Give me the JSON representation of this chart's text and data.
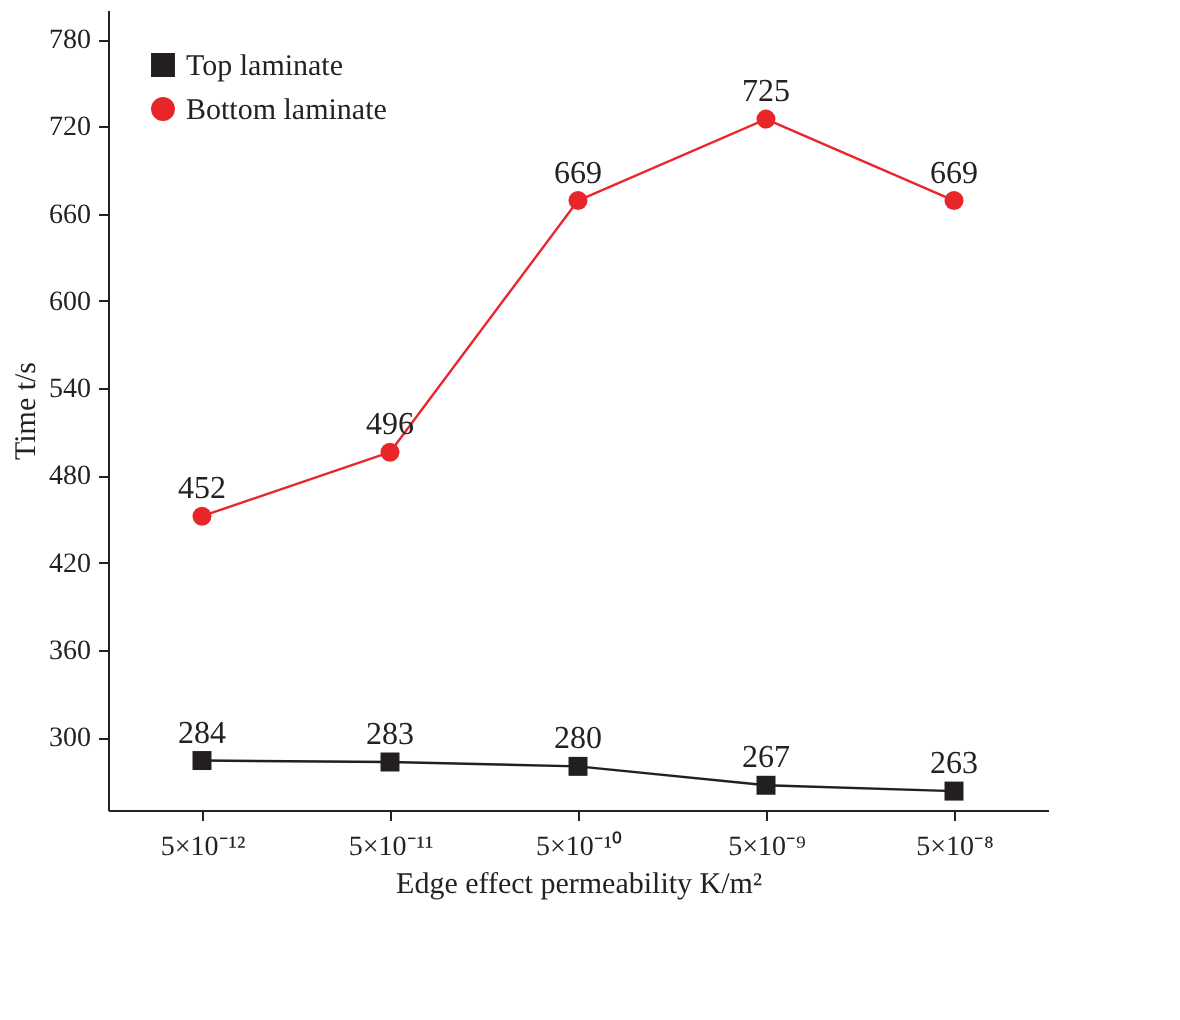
{
  "chart_data": {
    "type": "line",
    "xlabel": "Edge effect permeability K/m²",
    "ylabel": "Time t/s",
    "categories": [
      "5×10⁻¹²",
      "5×10⁻¹¹",
      "5×10⁻¹⁰",
      "5×10⁻⁹",
      "5×10⁻⁸"
    ],
    "series": [
      {
        "name": "Top laminate",
        "color": "#231f20",
        "marker": "square",
        "values": [
          284,
          283,
          280,
          267,
          263
        ]
      },
      {
        "name": "Bottom laminate",
        "color": "#e8262a",
        "marker": "circle",
        "values": [
          452,
          496,
          669,
          725,
          669
        ]
      }
    ],
    "ylim": [
      250,
      800
    ],
    "yticks": [
      300,
      360,
      420,
      480,
      540,
      600,
      660,
      720,
      780
    ],
    "data_labels": true,
    "legend": "top left",
    "grid": false,
    "line_style": "solid"
  }
}
